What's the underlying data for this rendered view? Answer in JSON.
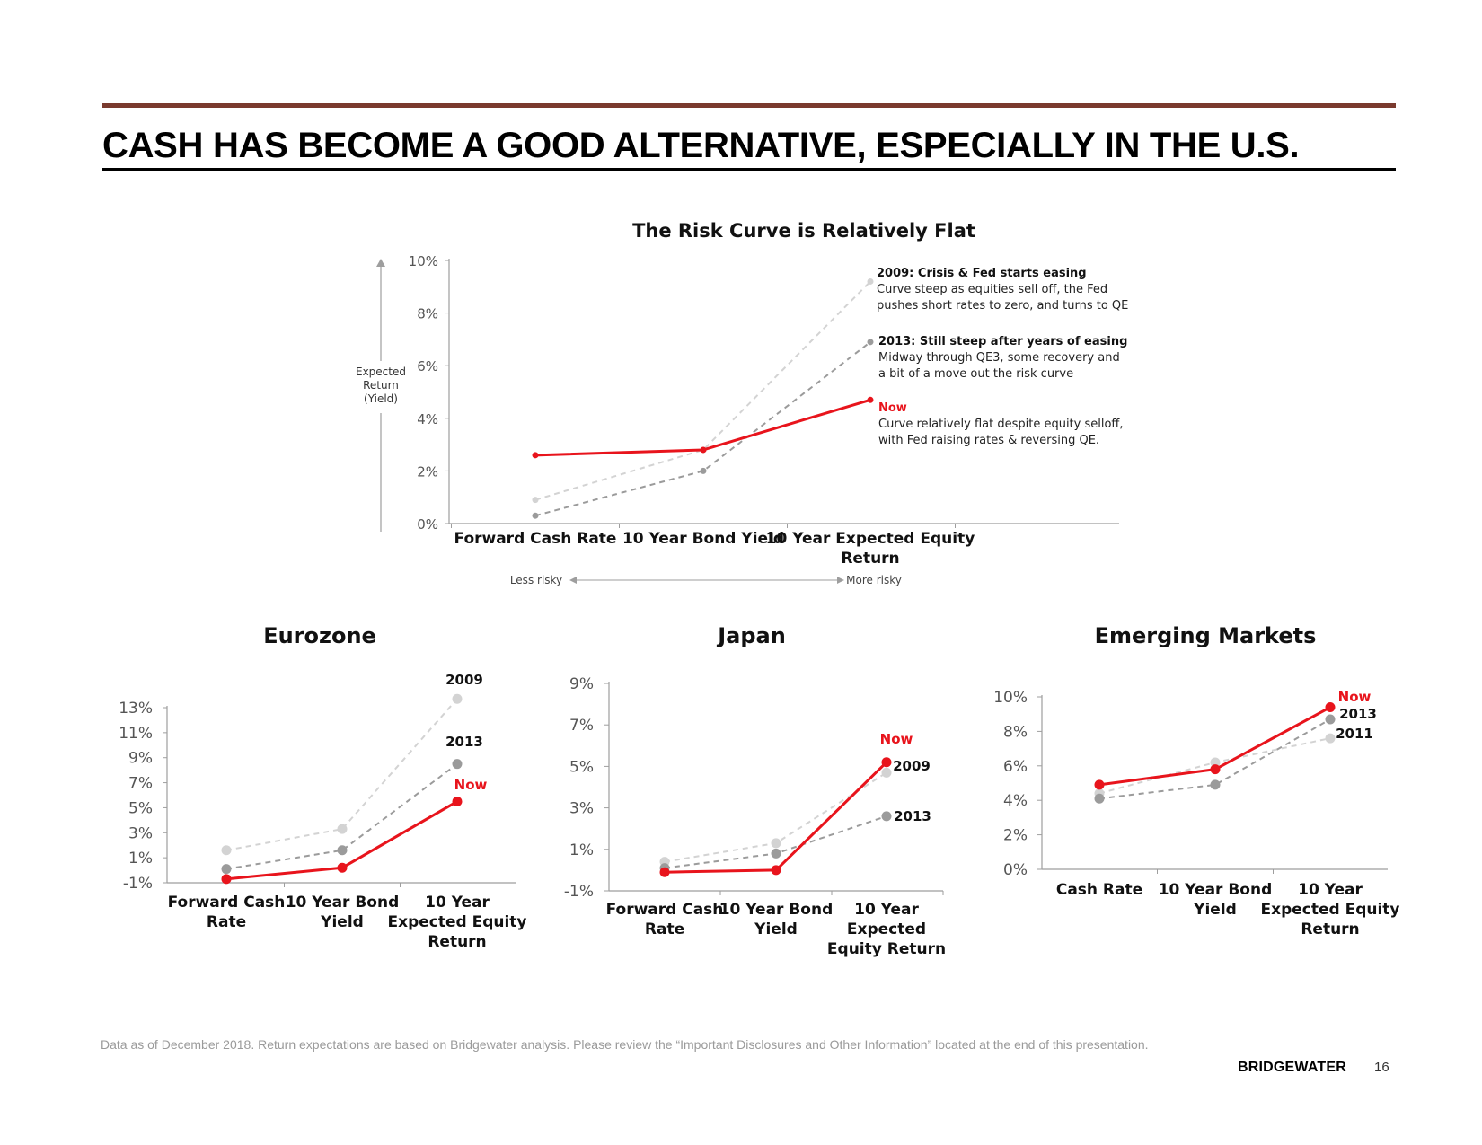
{
  "page": {
    "title": "CASH HAS BECOME A GOOD ALTERNATIVE, ESPECIALLY IN THE U.S.",
    "footnote": "Data as of December 2018. Return expectations are based on Bridgewater analysis. Please review the “Important Disclosures and Other Information” located at the end of this presentation.",
    "brand": "BRIDGEWATER",
    "page_number": "16"
  },
  "colors": {
    "now": "#e8141c",
    "y2013": "#9b9b9b",
    "y2009": "#d3d3d3",
    "axis": "#9e9e9e",
    "bar": "#7a3a2e"
  },
  "chart_data": [
    {
      "id": "main",
      "type": "line",
      "title": "The Risk Curve is Relatively Flat",
      "categories": [
        "Forward Cash Rate",
        "10 Year Bond Yield",
        "10 Year Expected Equity Return"
      ],
      "ylim": [
        0,
        10
      ],
      "yticks": [
        "10%",
        "8%",
        "6%",
        "4%",
        "2%",
        "0%"
      ],
      "ylabel": "Expected Return (Yield)",
      "risk_axis": {
        "left": "Less risky",
        "right": "More risky"
      },
      "series": [
        {
          "name": "2009",
          "style": "y2009",
          "values": [
            0.9,
            2.8,
            9.2
          ]
        },
        {
          "name": "2013",
          "style": "y2013",
          "values": [
            0.3,
            2.0,
            6.9
          ]
        },
        {
          "name": "Now",
          "style": "now",
          "values": [
            2.6,
            2.8,
            4.7
          ]
        }
      ],
      "annotations": [
        {
          "series": "2009",
          "head": "2009: Crisis  & Fed starts easing",
          "lines": [
            "Curve steep as equities sell off, the Fed",
            "pushes short rates to zero, and turns to QE"
          ]
        },
        {
          "series": "2013",
          "head": "2013: Still steep after years of easing",
          "lines": [
            "Midway  through QE3, some recovery  and",
            "a bit of a move  out the risk curve"
          ]
        },
        {
          "series": "Now",
          "head": "Now",
          "lines": [
            "Curve relatively  flat despite equity selloff,",
            "with Fed raising rates & reversing  QE."
          ]
        }
      ]
    },
    {
      "id": "eurozone",
      "type": "line",
      "title": "Eurozone",
      "categories": [
        "Forward Cash Rate",
        "10 Year Bond Yield",
        "10 Year Expected Equity Return"
      ],
      "ylim": [
        -1,
        13
      ],
      "yticks": [
        "13%",
        "11%",
        "9%",
        "7%",
        "5%",
        "3%",
        "1%",
        "-1%"
      ],
      "series": [
        {
          "name": "2009",
          "style": "y2009",
          "values": [
            1.6,
            3.3,
            13.7
          ]
        },
        {
          "name": "2013",
          "style": "y2013",
          "values": [
            0.1,
            1.6,
            8.5
          ]
        },
        {
          "name": "Now",
          "style": "now",
          "values": [
            -0.7,
            0.2,
            5.5
          ]
        }
      ],
      "labels": [
        {
          "series": "2009",
          "text": "2009"
        },
        {
          "series": "2013",
          "text": "2013"
        },
        {
          "series": "Now",
          "text": "Now"
        }
      ]
    },
    {
      "id": "japan",
      "type": "line",
      "title": "Japan",
      "categories": [
        "Forward Cash Rate",
        "10 Year Bond Yield",
        "10 Year Expected Equity Return"
      ],
      "ylim": [
        -1,
        9
      ],
      "yticks": [
        "9%",
        "7%",
        "5%",
        "3%",
        "1%",
        "-1%"
      ],
      "series": [
        {
          "name": "2009",
          "style": "y2009",
          "values": [
            0.4,
            1.3,
            4.7
          ]
        },
        {
          "name": "2013",
          "style": "y2013",
          "values": [
            0.1,
            0.8,
            2.6
          ]
        },
        {
          "name": "Now",
          "style": "now",
          "values": [
            -0.1,
            0.0,
            5.2
          ]
        }
      ],
      "labels": [
        {
          "series": "Now",
          "text": "Now"
        },
        {
          "series": "2009",
          "text": "2009"
        },
        {
          "series": "2013",
          "text": "2013"
        }
      ]
    },
    {
      "id": "em",
      "type": "line",
      "title": "Emerging Markets",
      "categories": [
        "Cash Rate",
        "10 Year Bond Yield",
        "10 Year Expected Equity Return"
      ],
      "ylim": [
        0,
        10
      ],
      "yticks": [
        "10%",
        "8%",
        "6%",
        "4%",
        "2%",
        "0%"
      ],
      "series": [
        {
          "name": "2011",
          "style": "y2009",
          "values": [
            4.4,
            6.2,
            7.6
          ]
        },
        {
          "name": "2013",
          "style": "y2013",
          "values": [
            4.1,
            4.9,
            8.7
          ]
        },
        {
          "name": "Now",
          "style": "now",
          "values": [
            4.9,
            5.8,
            9.4
          ]
        }
      ],
      "labels": [
        {
          "series": "Now",
          "text": "Now"
        },
        {
          "series": "2013",
          "text": "2013"
        },
        {
          "series": "2011",
          "text": "2011"
        }
      ]
    }
  ]
}
